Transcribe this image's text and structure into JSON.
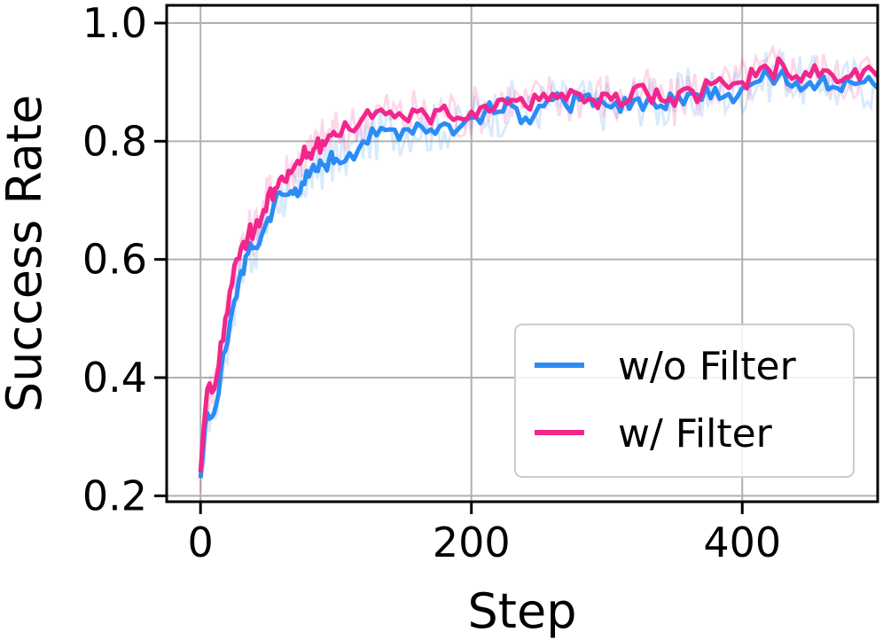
{
  "chart_data": {
    "type": "line",
    "xlabel": "Step",
    "ylabel": "Success Rate",
    "xlim": [
      -25,
      500
    ],
    "ylim": [
      0.19,
      1.03
    ],
    "xticks": [
      0,
      200,
      400
    ],
    "yticks": [
      0.2,
      0.4,
      0.6,
      0.8,
      1.0
    ],
    "ytick_labels": [
      "0.2",
      "0.4",
      "0.6",
      "0.8",
      "1.0"
    ],
    "grid": true,
    "legend_position": "lower-right",
    "series": [
      {
        "name": "w/o Filter",
        "color": "#2b8cf5",
        "x": [
          0,
          5,
          10,
          15,
          20,
          25,
          30,
          35,
          40,
          45,
          50,
          55,
          60,
          65,
          70,
          75,
          80,
          85,
          90,
          95,
          100,
          110,
          120,
          130,
          140,
          150,
          160,
          170,
          180,
          190,
          200,
          210,
          220,
          230,
          240,
          250,
          260,
          270,
          280,
          290,
          300,
          310,
          320,
          330,
          340,
          350,
          360,
          370,
          380,
          390,
          400,
          410,
          420,
          430,
          440,
          450,
          460,
          470,
          480,
          490,
          500
        ],
        "y": [
          0.23,
          0.34,
          0.34,
          0.41,
          0.46,
          0.53,
          0.58,
          0.61,
          0.62,
          0.64,
          0.67,
          0.7,
          0.71,
          0.71,
          0.72,
          0.73,
          0.74,
          0.75,
          0.76,
          0.77,
          0.77,
          0.78,
          0.8,
          0.81,
          0.82,
          0.82,
          0.83,
          0.82,
          0.83,
          0.82,
          0.84,
          0.85,
          0.85,
          0.86,
          0.84,
          0.86,
          0.87,
          0.86,
          0.87,
          0.86,
          0.86,
          0.85,
          0.87,
          0.87,
          0.86,
          0.87,
          0.88,
          0.87,
          0.89,
          0.88,
          0.89,
          0.9,
          0.91,
          0.92,
          0.9,
          0.9,
          0.91,
          0.89,
          0.9,
          0.9,
          0.89
        ]
      },
      {
        "name": "w/ Filter",
        "color": "#f2268c",
        "x": [
          0,
          5,
          10,
          15,
          20,
          25,
          30,
          35,
          40,
          45,
          50,
          55,
          60,
          65,
          70,
          75,
          80,
          85,
          90,
          95,
          100,
          110,
          120,
          130,
          140,
          150,
          160,
          170,
          180,
          190,
          200,
          210,
          220,
          230,
          240,
          250,
          260,
          270,
          280,
          290,
          300,
          310,
          320,
          330,
          340,
          350,
          360,
          370,
          380,
          390,
          400,
          410,
          420,
          430,
          440,
          450,
          460,
          470,
          480,
          490,
          500
        ],
        "y": [
          0.24,
          0.38,
          0.38,
          0.46,
          0.51,
          0.59,
          0.62,
          0.64,
          0.65,
          0.67,
          0.71,
          0.72,
          0.74,
          0.75,
          0.76,
          0.77,
          0.78,
          0.79,
          0.8,
          0.81,
          0.81,
          0.82,
          0.84,
          0.85,
          0.85,
          0.84,
          0.85,
          0.83,
          0.86,
          0.84,
          0.85,
          0.86,
          0.87,
          0.87,
          0.86,
          0.87,
          0.88,
          0.87,
          0.88,
          0.87,
          0.88,
          0.86,
          0.89,
          0.88,
          0.87,
          0.86,
          0.89,
          0.88,
          0.9,
          0.89,
          0.9,
          0.91,
          0.92,
          0.93,
          0.91,
          0.91,
          0.92,
          0.9,
          0.91,
          0.92,
          0.91
        ]
      }
    ]
  }
}
